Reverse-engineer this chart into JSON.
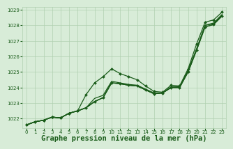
{
  "bg_color": "#d8ecd8",
  "grid_color": "#b0d0b0",
  "line_color": "#1a5c1a",
  "title": "Graphe pression niveau de la mer (hPa)",
  "xlim": [
    -0.5,
    23.5
  ],
  "ylim": [
    1021.4,
    1029.2
  ],
  "yticks": [
    1022,
    1023,
    1024,
    1025,
    1026,
    1027,
    1028,
    1029
  ],
  "xticks": [
    0,
    1,
    2,
    3,
    4,
    5,
    6,
    7,
    8,
    9,
    10,
    11,
    12,
    13,
    14,
    15,
    16,
    17,
    18,
    19,
    20,
    21,
    22,
    23
  ],
  "series": [
    [
      1021.6,
      1021.8,
      1021.9,
      1022.1,
      1022.05,
      1022.35,
      1022.5,
      1022.7,
      1023.1,
      1023.35,
      1024.3,
      1024.25,
      1024.15,
      1024.1,
      1023.85,
      1023.6,
      1023.65,
      1024.0,
      1024.0,
      1025.0,
      1026.4,
      1027.9,
      1028.05,
      1028.6
    ],
    [
      1021.6,
      1021.8,
      1021.9,
      1022.1,
      1022.05,
      1022.35,
      1022.5,
      1022.7,
      1023.1,
      1023.35,
      1024.3,
      1024.25,
      1024.15,
      1024.1,
      1023.85,
      1023.6,
      1023.65,
      1024.0,
      1024.0,
      1025.05,
      1026.45,
      1028.0,
      1028.1,
      1028.65
    ],
    [
      1021.6,
      1021.8,
      1021.9,
      1022.1,
      1022.05,
      1022.35,
      1022.5,
      1023.55,
      1024.3,
      1024.7,
      1025.2,
      1024.9,
      1024.7,
      1024.5,
      1024.1,
      1023.75,
      1023.7,
      1024.15,
      1024.1,
      1025.2,
      1026.8,
      1028.2,
      1028.35,
      1028.85
    ],
    [
      1021.6,
      1021.8,
      1021.9,
      1022.1,
      1022.05,
      1022.35,
      1022.5,
      1022.7,
      1023.1,
      1023.35,
      1024.3,
      1024.25,
      1024.15,
      1024.1,
      1023.85,
      1023.6,
      1023.65,
      1024.0,
      1024.0,
      1025.0,
      1026.4,
      1027.9,
      1028.05,
      1028.6
    ],
    [
      1021.6,
      1021.8,
      1021.9,
      1022.1,
      1022.05,
      1022.35,
      1022.5,
      1022.7,
      1023.3,
      1023.5,
      1024.4,
      1024.3,
      1024.2,
      1024.15,
      1023.9,
      1023.65,
      1023.65,
      1024.05,
      1024.05,
      1025.1,
      1026.5,
      1028.0,
      1028.15,
      1028.7
    ]
  ],
  "has_markers": [
    true,
    false,
    true,
    false,
    false
  ],
  "marker": "D",
  "markersize": 2.0,
  "linewidth": 0.9,
  "title_fontsize": 7.5,
  "tick_fontsize": 5.0
}
